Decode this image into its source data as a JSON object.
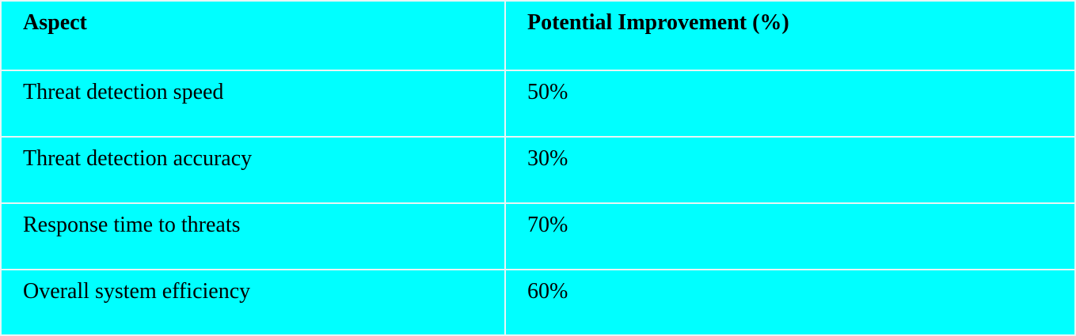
{
  "table": {
    "headers": [
      "Aspect",
      "Potential Improvement (%)"
    ],
    "rows": [
      [
        "Threat detection speed",
        "50%"
      ],
      [
        "Threat detection accuracy",
        "30%"
      ],
      [
        "Response time to threats",
        "70%"
      ],
      [
        "Overall system efficiency",
        "60%"
      ]
    ]
  },
  "colors": {
    "background": "#00ffff",
    "border": "#e7f6f6",
    "text": "#000000"
  }
}
